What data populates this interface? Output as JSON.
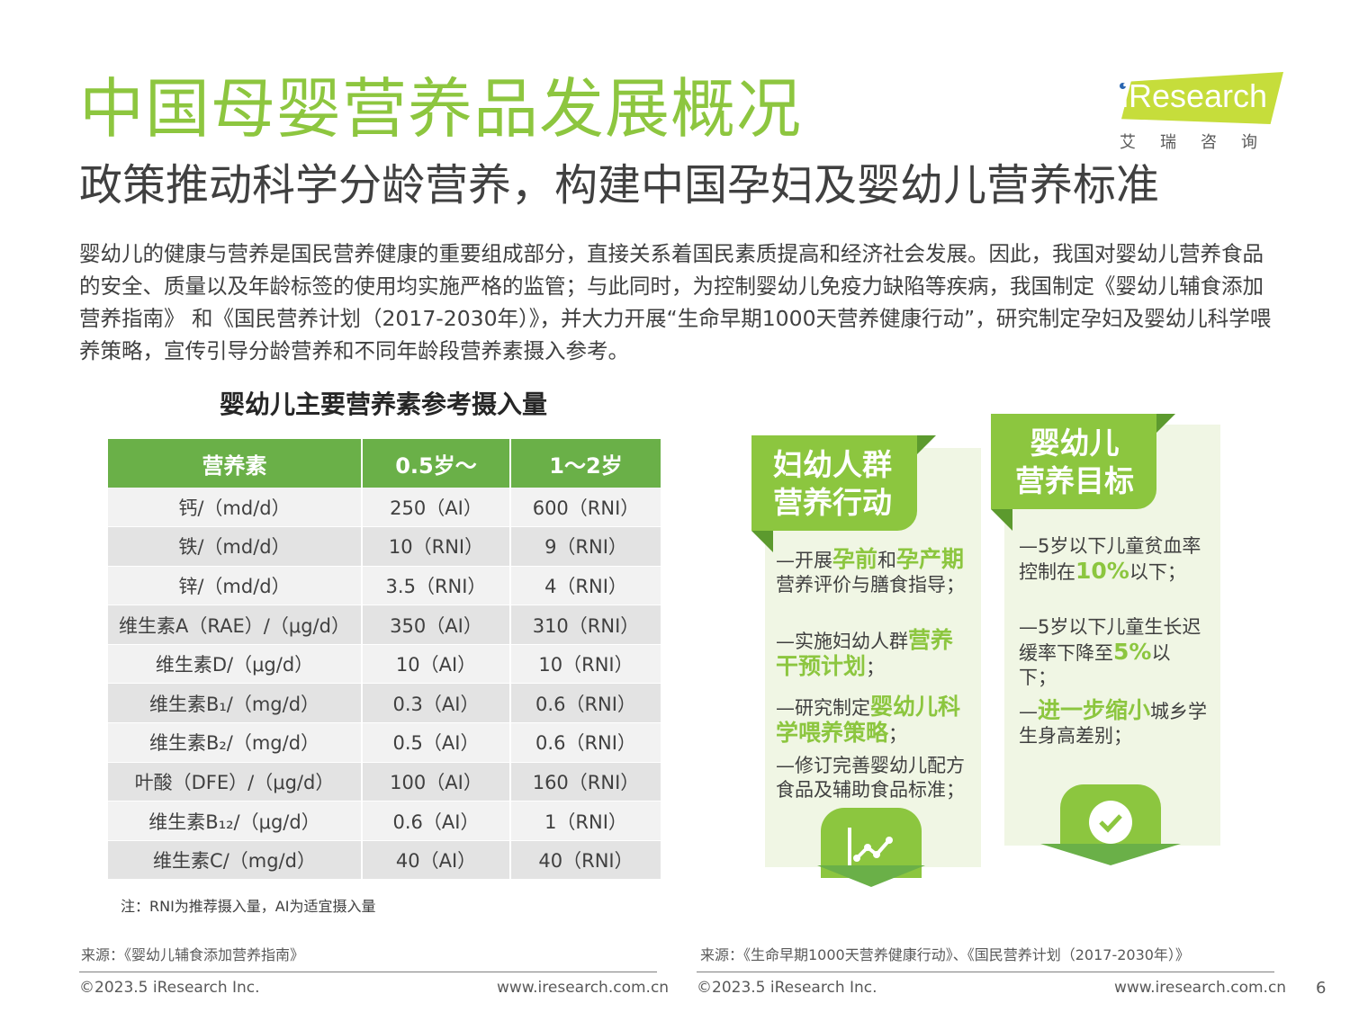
{
  "header": {
    "title": "中国母婴营养品发展概况",
    "subtitle": "政策推动科学分龄营养，构建中国孕妇及婴幼儿营养标准",
    "logo_text": "iResearch",
    "logo_cn": "艾瑞咨询"
  },
  "intro": "婴幼儿的健康与营养是国民营养健康的重要组成部分，直接关系着国民素质提高和经济社会发展。因此，我国对婴幼儿营养食品的安全、质量以及年龄标签的使用均实施严格的监管；与此同时，为控制婴幼儿免疫力缺陷等疾病，我国制定《婴幼儿辅食添加营养指南》 和《国民营养计划（2017-2030年）》，并大力开展“生命早期1000天营养健康行动”，研究制定孕妇及婴幼儿科学喂养策略，宣传引导分龄营养和不同年龄段营养素摄入参考。",
  "table": {
    "title": "婴幼儿主要营养素参考摄入量",
    "headers": [
      "营养素",
      "0.5岁～",
      "1～2岁"
    ],
    "rows": [
      [
        "钙/（md/d）",
        "250（AI）",
        "600（RNI）"
      ],
      [
        "铁/（md/d）",
        "10（RNI）",
        "9（RNI）"
      ],
      [
        "锌/（md/d）",
        "3.5（RNI）",
        "4（RNI）"
      ],
      [
        "维生素A（RAE）/（μg/d）",
        "350（AI）",
        "310（RNI）"
      ],
      [
        "维生素D/（μg/d）",
        "10（AI）",
        "10（RNI）"
      ],
      [
        "维生素B₁/（mg/d）",
        "0.3（AI）",
        "0.6（RNI）"
      ],
      [
        "维生素B₂/（mg/d）",
        "0.5（AI）",
        "0.6（RNI）"
      ],
      [
        "叶酸（DFE）/（μg/d）",
        "100（AI）",
        "160（RNI）"
      ],
      [
        "维生素B₁₂/（μg/d）",
        "0.6（AI）",
        "1（RNI）"
      ],
      [
        "维生素C/（mg/d）",
        "40（AI）",
        "40（RNI）"
      ]
    ],
    "note": "注：RNI为推荐摄入量，AI为适宜摄入量"
  },
  "panel_left": {
    "title_line1": "妇幼人群",
    "title_line2": "营养行动",
    "item1_a": "—开展",
    "item1_em1": "孕前",
    "item1_b": "和",
    "item1_em2": "孕产期",
    "item1_c": "营养评价与膳食指导；",
    "item2_a": "—实施妇幼人群",
    "item2_em": "营养干预计划",
    "item2_b": "；",
    "item3_a": "—研究制定",
    "item3_em": "婴幼儿科学喂养策略",
    "item3_b": "；",
    "item4": "—修订完善婴幼儿配方食品及辅助食品标准；",
    "icon": "line-chart-icon"
  },
  "panel_right": {
    "title_line1": "婴幼儿",
    "title_line2": "营养目标",
    "item1_a": "—5岁以下儿童贫血率控制在",
    "item1_em": "10%",
    "item1_b": "以下；",
    "item2_a": "—5岁以下儿童生长迟缓率下降至",
    "item2_em": "5%",
    "item2_b": "以下；",
    "item3_a": "—",
    "item3_em": "进一步缩小",
    "item3_b": "城乡学生身高差别；",
    "icon": "check-circle-icon"
  },
  "footer": {
    "source_left": "来源：《婴幼儿辅食添加营养指南》",
    "source_right": "来源：《生命早期1000天营养健康行动》、《国民营养计划（2017-2030年）》",
    "copyright_left": "©2023.5 iResearch Inc.",
    "url_left": "www.iresearch.com.cn",
    "copyright_right": "©2023.5 iResearch Inc.",
    "url_right": "www.iresearch.com.cn",
    "page": "6"
  },
  "colors": {
    "title_green": "#8dc63f",
    "table_header": "#6ab048",
    "panel_bg": "#f0f6e4",
    "accent": "#8cc63f",
    "dark_green": "#5c9a2e"
  }
}
